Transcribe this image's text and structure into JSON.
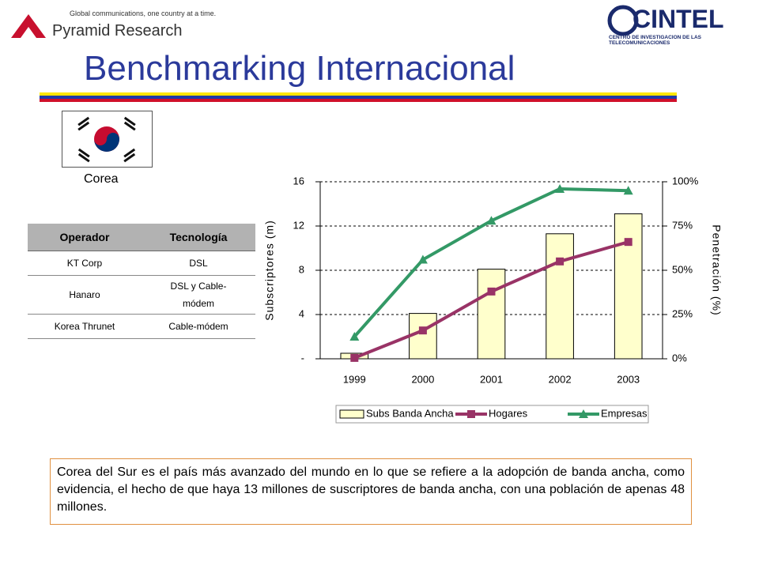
{
  "header": {
    "tagline": "Global communications, one country at a time.",
    "brand": "Pyramid Research",
    "partner": "CINTEL",
    "partner_subtitle": "CENTRO DE INVESTIGACION DE LAS TELECOMUNICACIONES",
    "title": "Benchmarking Internacional"
  },
  "country": "Corea",
  "table": {
    "columns": [
      "Operador",
      "Tecnología"
    ],
    "rows": [
      [
        "KT Corp",
        "DSL"
      ],
      [
        "Hanaro",
        "DSL y Cable-módem"
      ],
      [
        "Korea Thrunet",
        "Cable-módem"
      ]
    ]
  },
  "note": "Corea del Sur es el país más avanzado del mundo en lo que se refiere a la adopción de banda ancha, como evidencia, el hecho de que haya 13 millones de suscriptores de banda ancha, con una población de apenas 48 millones.",
  "chart_data": {
    "type": "bar",
    "categories": [
      "1999",
      "2000",
      "2001",
      "2002",
      "2003"
    ],
    "series": [
      {
        "name": "Subs Banda Ancha",
        "type": "bar",
        "color": "#ffffcc",
        "values": [
          0.5,
          4.1,
          8.1,
          11.3,
          13.1
        ]
      },
      {
        "name": "Hogares",
        "type": "line",
        "axis": "y2",
        "color": "#993366",
        "values": [
          0.5,
          16,
          38,
          55,
          66
        ]
      },
      {
        "name": "Empresas",
        "type": "line",
        "axis": "y2",
        "color": "#339966",
        "values": [
          12.5,
          56,
          78,
          96,
          95
        ]
      }
    ],
    "ylabel": "Subscriptores (m)",
    "y2label": "Penetración (%)",
    "ylim": [
      0,
      16
    ],
    "yticks": [
      {
        "value": 0,
        "label": "-"
      },
      4,
      8,
      12,
      16
    ],
    "y2lim": [
      0,
      100
    ],
    "y2ticks": [
      {
        "value": 0,
        "label": "0%"
      },
      {
        "value": 25,
        "label": "25%"
      },
      {
        "value": 50,
        "label": "50%"
      },
      {
        "value": 75,
        "label": "75%"
      },
      {
        "value": 100,
        "label": "100%"
      }
    ],
    "grid": true,
    "legend": "bottom"
  }
}
